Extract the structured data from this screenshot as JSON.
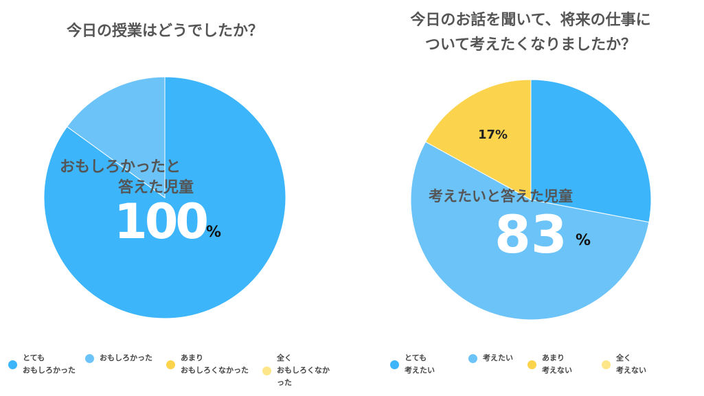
{
  "chart_data": [
    {
      "type": "pie",
      "title": "今日の授業はどうでしたか？",
      "categories": [
        "とても\nおもしろかった",
        "おもしろかった",
        "あまり\nおもしろくなかった",
        "全く\nおもしろくなかった"
      ],
      "values": [
        85,
        15,
        0,
        0
      ],
      "colors": [
        "#3db5fb",
        "#6cc3f8",
        "#fcd34d",
        "#fde68a"
      ],
      "annotation": {
        "line1": "おもしろかったと",
        "line2": "答えた児童",
        "value": "100",
        "unit": "%"
      },
      "legend_position": "bottom"
    },
    {
      "type": "pie",
      "title": "今日のお話を聞いて、将来の仕事に\nついて考えたくなりましたか？",
      "categories": [
        "とても\n考えたい",
        "考えたい",
        "あまり\n考えない",
        "全く\n考えない"
      ],
      "values": [
        28,
        55,
        17,
        0
      ],
      "colors": [
        "#3db5fb",
        "#6cc3f8",
        "#fcd34d",
        "#fde68a"
      ],
      "slice_label": "17%",
      "annotation": {
        "line1": "考えたいと答えた児童",
        "value": "83",
        "unit": "%"
      },
      "legend_position": "bottom"
    }
  ]
}
